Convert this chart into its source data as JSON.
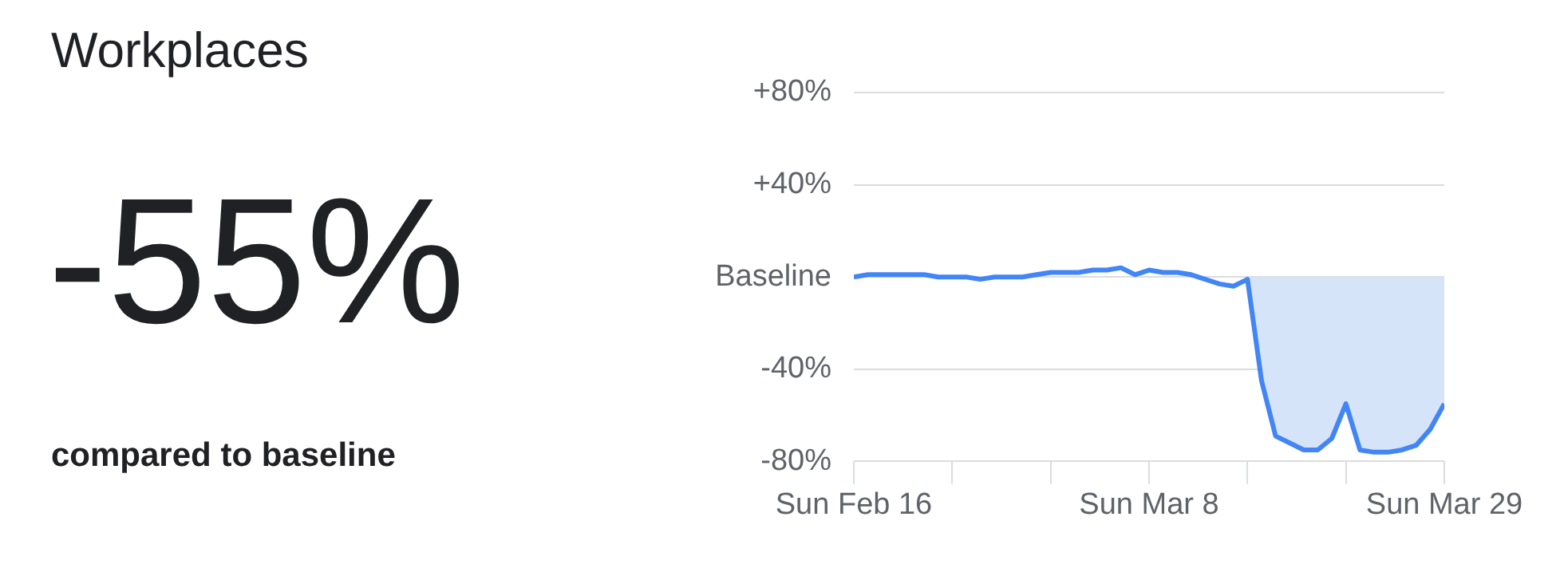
{
  "chart_data": {
    "type": "line",
    "title": "Workplaces",
    "annotations": [
      "-55%",
      "compared to baseline"
    ],
    "x": [
      "--02-16",
      "--02-17",
      "--02-18",
      "--02-19",
      "--02-20",
      "--02-21",
      "--02-22",
      "--02-23",
      "--02-24",
      "--02-25",
      "--02-26",
      "--02-27",
      "--02-28",
      "--02-29",
      "--03-01",
      "--03-02",
      "--03-03",
      "--03-04",
      "--03-05",
      "--03-06",
      "--03-07",
      "--03-08",
      "--03-09",
      "--03-10",
      "--03-11",
      "--03-12",
      "--03-13",
      "--03-14",
      "--03-15",
      "--03-16",
      "--03-17",
      "--03-18",
      "--03-19",
      "--03-20",
      "--03-21",
      "--03-22",
      "--03-23",
      "--03-24",
      "--03-25",
      "--03-26",
      "--03-27",
      "--03-28",
      "--03-29"
    ],
    "series": [
      {
        "color": "#4285f4",
        "values": [
          0,
          1,
          1,
          1,
          1,
          1,
          0,
          0,
          0,
          -1,
          0,
          0,
          0,
          1,
          2,
          2,
          2,
          3,
          3,
          4,
          1,
          3,
          2,
          2,
          1,
          -1,
          -3,
          -4,
          -1,
          -45,
          -69,
          -72,
          -75,
          -75,
          -70,
          -55,
          -75,
          -76,
          -76,
          -75,
          -73,
          -66,
          -55
        ]
      }
    ],
    "xlim": [
      "--02-16",
      "--03-29"
    ],
    "xticks": [
      {
        "value": "--02-16",
        "label": "Sun Feb 16"
      },
      {
        "value": "--02-23",
        "label": null
      },
      {
        "value": "--03-01",
        "label": null
      },
      {
        "value": "--03-08",
        "label": "Sun Mar 8"
      },
      {
        "value": "--03-15",
        "label": null
      },
      {
        "value": "--03-22",
        "label": null
      },
      {
        "value": "--03-29",
        "label": "Sun Mar 29"
      }
    ],
    "ylim": [
      -80,
      80
    ],
    "yticks": [
      {
        "value": -80,
        "label": "-80%"
      },
      {
        "value": -40,
        "label": "-40%"
      },
      {
        "value": 0,
        "label": "Baseline"
      },
      {
        "value": 40,
        "label": "+40%"
      },
      {
        "value": 80,
        "label": "+80%"
      }
    ],
    "bands": [
      {
        "axis": "x",
        "from": "--03-15",
        "to": "--03-29",
        "color": "#d6e4fa"
      }
    ],
    "grid": "y",
    "legend": false,
    "marker": "none",
    "line_style": "solid"
  }
}
